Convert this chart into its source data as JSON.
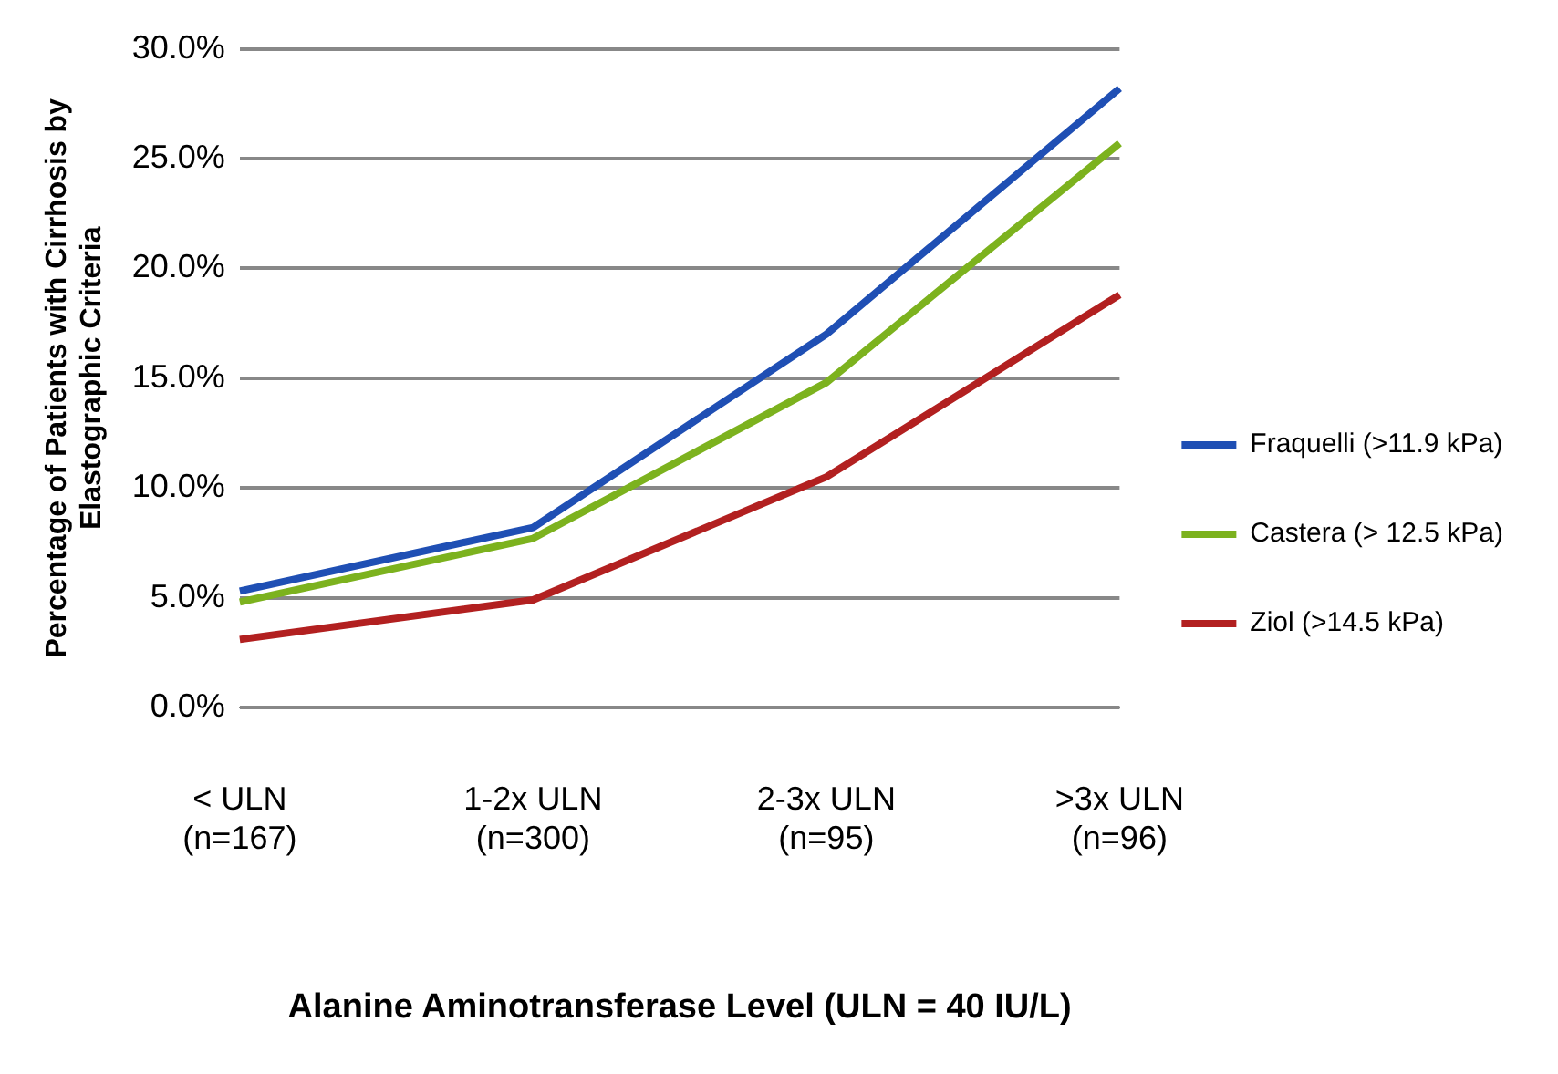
{
  "chart_data": {
    "type": "line",
    "categories": [
      "< ULN\n(n=167)",
      "1-2x ULN\n(n=300)",
      "2-3x ULN\n(n=95)",
      ">3x ULN\n(n=96)"
    ],
    "series": [
      {
        "name": "Fraquelli (>11.9 kPa)",
        "color": "#1f4fb4",
        "values": [
          5.3,
          8.2,
          17.0,
          28.2
        ]
      },
      {
        "name": "Castera (> 12.5 kPa)",
        "color": "#7cb21e",
        "values": [
          4.8,
          7.7,
          14.8,
          25.7
        ]
      },
      {
        "name": "Ziol (>14.5 kPa)",
        "color": "#b22020",
        "values": [
          3.1,
          4.9,
          10.5,
          18.8
        ]
      }
    ],
    "ylim": [
      0,
      30
    ],
    "yticks": [
      {
        "value": 0,
        "label": "0.0%"
      },
      {
        "value": 5,
        "label": "5.0%"
      },
      {
        "value": 10,
        "label": "10.0%"
      },
      {
        "value": 15,
        "label": "15.0%"
      },
      {
        "value": 20,
        "label": "20.0%"
      },
      {
        "value": 25,
        "label": "25.0%"
      },
      {
        "value": 30,
        "label": "30.0%"
      }
    ],
    "xlabel": "Alanine Aminotransferase Level (ULN = 40 IU/L)",
    "ylabel": "Percentage of Patients with Cirrhosis by\nElastographic Criteria",
    "grid": "y",
    "legend": "right",
    "marker": "none",
    "line_style": "solid"
  }
}
